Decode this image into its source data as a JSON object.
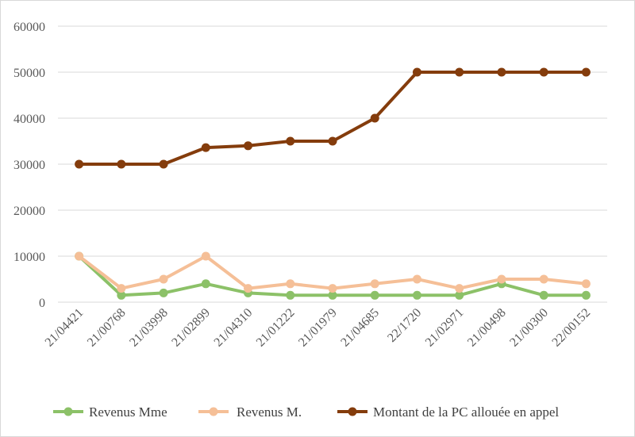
{
  "chart_data": {
    "type": "line",
    "title": "",
    "xlabel": "",
    "ylabel": "",
    "ylim": [
      0,
      60000
    ],
    "yticks": [
      0,
      10000,
      20000,
      30000,
      40000,
      50000,
      60000
    ],
    "grid": true,
    "legend_position": "bottom",
    "categories": [
      "21/04421",
      "21/00768",
      "21/03998",
      "21/02899",
      "21/04310",
      "21/01222",
      "21/01979",
      "21/04685",
      "22/1720",
      "21/02971",
      "21/00498",
      "21/00300",
      "22/00152"
    ],
    "series": [
      {
        "name": "Revenus Mme",
        "color": "#8cc168",
        "values": [
          10000,
          1500,
          2000,
          4000,
          2000,
          1500,
          1500,
          1500,
          1500,
          1500,
          4000,
          1500,
          1500
        ]
      },
      {
        "name": "Revenus M.",
        "color": "#f5bf97",
        "values": [
          10000,
          3000,
          5000,
          10000,
          3000,
          4000,
          3000,
          4000,
          5000,
          3000,
          5000,
          5000,
          4000
        ]
      },
      {
        "name": "Montant de la PC allouée en appel",
        "color": "#843c0c",
        "values": [
          30000,
          30000,
          30000,
          33600,
          34000,
          35000,
          35000,
          40000,
          50000,
          50000,
          50000,
          50000,
          50000
        ]
      }
    ]
  }
}
